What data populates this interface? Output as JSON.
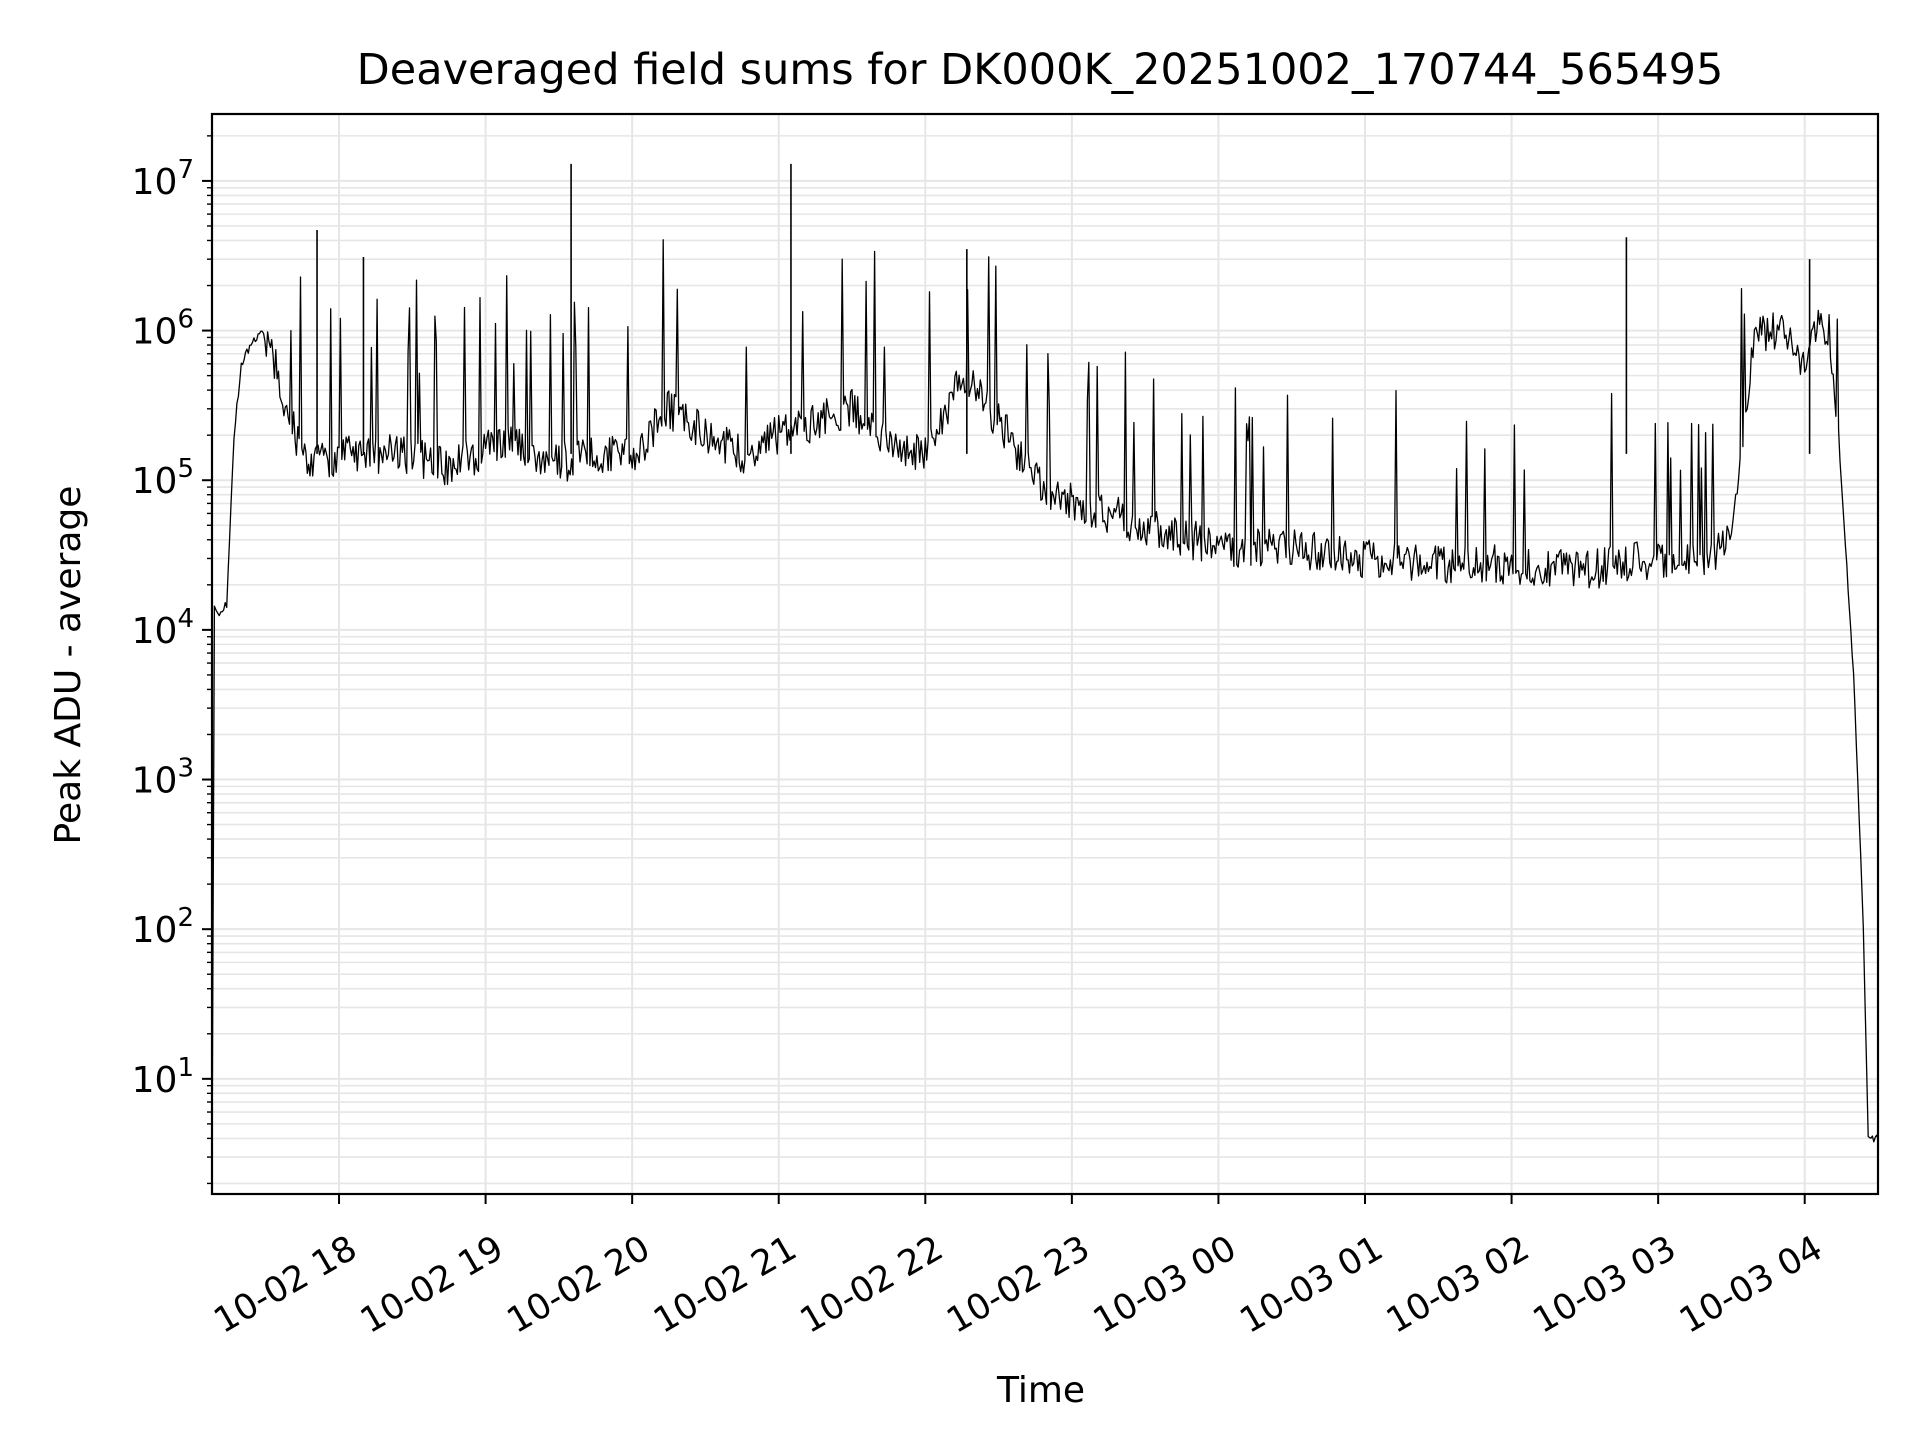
{
  "chart_data": {
    "type": "line",
    "title": "Deaveraged field sums for DK000K_20251002_170744_565495",
    "xlabel": "Time",
    "ylabel": "Peak ADU - average",
    "xlim": [
      "2025-10-02 17:08",
      "2025-10-03 04:30"
    ],
    "ylim": [
      1.7,
      28000000
    ],
    "y_scale": "log",
    "grid": true,
    "line_color": "#000000",
    "x_ticks": [
      {
        "value": "2025-10-02 18:00",
        "label": "10-02 18"
      },
      {
        "value": "2025-10-02 19:00",
        "label": "10-02 19"
      },
      {
        "value": "2025-10-02 20:00",
        "label": "10-02 20"
      },
      {
        "value": "2025-10-02 21:00",
        "label": "10-02 21"
      },
      {
        "value": "2025-10-02 22:00",
        "label": "10-02 22"
      },
      {
        "value": "2025-10-02 23:00",
        "label": "10-02 23"
      },
      {
        "value": "2025-10-03 00:00",
        "label": "10-03 00"
      },
      {
        "value": "2025-10-03 01:00",
        "label": "10-03 01"
      },
      {
        "value": "2025-10-03 02:00",
        "label": "10-03 02"
      },
      {
        "value": "2025-10-03 03:00",
        "label": "10-03 03"
      },
      {
        "value": "2025-10-03 04:00",
        "label": "10-03 04"
      }
    ],
    "y_ticks": [
      {
        "value": 10,
        "base": "10",
        "exp": "1"
      },
      {
        "value": 100,
        "base": "10",
        "exp": "2"
      },
      {
        "value": 1000,
        "base": "10",
        "exp": "3"
      },
      {
        "value": 10000,
        "base": "10",
        "exp": "4"
      },
      {
        "value": 100000,
        "base": "10",
        "exp": "5"
      },
      {
        "value": 1000000,
        "base": "10",
        "exp": "6"
      },
      {
        "value": 10000000,
        "base": "10",
        "exp": "7"
      }
    ],
    "series": [
      {
        "x": [
          "2025-10-02 17:08",
          "2025-10-02 17:09",
          "2025-10-02 17:11",
          "2025-10-02 17:14",
          "2025-10-02 17:17",
          "2025-10-02 17:20",
          "2025-10-02 17:24",
          "2025-10-02 17:28",
          "2025-10-02 17:33",
          "2025-10-02 17:38",
          "2025-10-02 17:42",
          "2025-10-02 17:47",
          "2025-10-02 17:52",
          "2025-10-02 18:00",
          "2025-10-02 18:15",
          "2025-10-02 18:30",
          "2025-10-02 18:45",
          "2025-10-02 19:00",
          "2025-10-02 19:15",
          "2025-10-02 19:30",
          "2025-10-02 19:45",
          "2025-10-02 20:00",
          "2025-10-02 20:15",
          "2025-10-02 20:30",
          "2025-10-02 20:45",
          "2025-10-02 21:00",
          "2025-10-02 21:15",
          "2025-10-02 21:30",
          "2025-10-02 21:45",
          "2025-10-02 22:00",
          "2025-10-02 22:15",
          "2025-10-02 22:30",
          "2025-10-02 22:45",
          "2025-10-02 23:00",
          "2025-10-02 23:30",
          "2025-10-03 00:00",
          "2025-10-03 00:30",
          "2025-10-03 01:00",
          "2025-10-03 01:30",
          "2025-10-03 02:00",
          "2025-10-03 02:30",
          "2025-10-03 03:00",
          "2025-10-03 03:20",
          "2025-10-03 03:30",
          "2025-10-03 03:40",
          "2025-10-03 03:50",
          "2025-10-03 04:00",
          "2025-10-03 04:05",
          "2025-10-03 04:10",
          "2025-10-03 04:15",
          "2025-10-03 04:20",
          "2025-10-03 04:24",
          "2025-10-03 04:26",
          "2025-10-03 04:30"
        ],
        "y": [
          2,
          15000,
          13000,
          15000,
          200000,
          600000,
          800000,
          1000000,
          700000,
          300000,
          200000,
          150000,
          130000,
          150000,
          150000,
          150000,
          120000,
          160000,
          170000,
          130000,
          150000,
          140000,
          300000,
          200000,
          150000,
          200000,
          250000,
          300000,
          180000,
          150000,
          500000,
          250000,
          100000,
          70000,
          50000,
          35000,
          35000,
          30000,
          28000,
          27000,
          25000,
          30000,
          30000,
          40000,
          1000000,
          1000000,
          600000,
          1200000,
          1000000,
          100000,
          5000,
          100,
          4,
          4
        ]
      }
    ],
    "spikes": [
      {
        "x": "2025-10-02 17:51",
        "y": 4700000
      },
      {
        "x": "2025-10-02 18:10",
        "y": 3100000
      },
      {
        "x": "2025-10-02 19:35",
        "y": 13000000
      },
      {
        "x": "2025-10-02 21:05",
        "y": 13000000
      },
      {
        "x": "2025-10-02 22:17",
        "y": 3500000
      },
      {
        "x": "2025-10-03 02:47",
        "y": 4200000
      },
      {
        "x": "2025-10-03 04:02",
        "y": 3000000
      }
    ]
  }
}
